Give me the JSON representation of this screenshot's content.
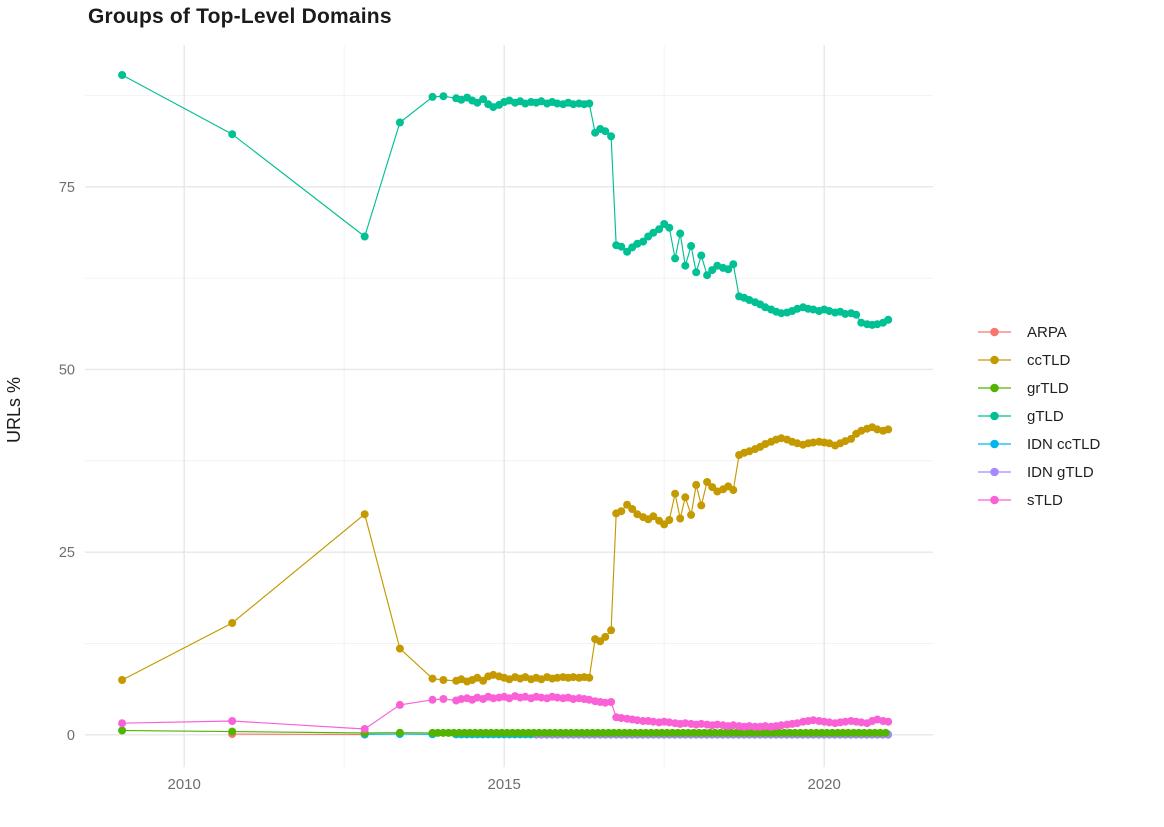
{
  "chart_data": {
    "type": "line",
    "title": "Groups of Top-Level Domains",
    "xlabel": "",
    "ylabel": "URLs %",
    "xlim": [
      2008.45,
      2021.7
    ],
    "ylim": [
      -4.4,
      94.4
    ],
    "x_ticks": [
      2010,
      2015,
      2020
    ],
    "x_minor_gridlines": [
      2012.5,
      2017.5
    ],
    "y_ticks": [
      0,
      25,
      50,
      75
    ],
    "y_minor_gridlines": [
      12.5,
      37.5,
      62.5,
      87.5
    ],
    "grid": true,
    "legend_position": "right-center",
    "point_radius": 4,
    "line_width": 1.15,
    "draw_order": [
      "ARPA",
      "IDN ccTLD",
      "IDN gTLD",
      "grTLD",
      "ccTLD",
      "gTLD",
      "sTLD"
    ],
    "series": [
      {
        "name": "ARPA",
        "color": "#F8766D",
        "points": [
          [
            2010.75,
            0.1
          ],
          [
            2012.82,
            0.03
          ]
        ]
      },
      {
        "name": "ccTLD",
        "color": "#C49A00",
        "points": [
          [
            2009.03,
            7.5
          ],
          [
            2010.75,
            15.3
          ],
          [
            2012.82,
            30.2
          ],
          [
            2013.37,
            11.8
          ],
          [
            2013.88,
            7.7
          ],
          [
            2014.05,
            7.5
          ],
          [
            2014.25,
            7.4
          ],
          [
            2014.33,
            7.6
          ],
          [
            2014.42,
            7.3
          ],
          [
            2014.5,
            7.5
          ],
          [
            2014.58,
            7.8
          ],
          [
            2014.67,
            7.4
          ],
          [
            2014.75,
            8.0
          ],
          [
            2014.83,
            8.2
          ],
          [
            2014.92,
            8.0
          ],
          [
            2015.0,
            7.8
          ],
          [
            2015.08,
            7.6
          ],
          [
            2015.17,
            7.9
          ],
          [
            2015.25,
            7.7
          ],
          [
            2015.33,
            7.9
          ],
          [
            2015.42,
            7.6
          ],
          [
            2015.5,
            7.8
          ],
          [
            2015.58,
            7.6
          ],
          [
            2015.67,
            7.9
          ],
          [
            2015.75,
            7.7
          ],
          [
            2015.83,
            7.8
          ],
          [
            2015.92,
            7.9
          ],
          [
            2016.0,
            7.8
          ],
          [
            2016.08,
            7.9
          ],
          [
            2016.17,
            7.8
          ],
          [
            2016.25,
            7.9
          ],
          [
            2016.33,
            7.8
          ],
          [
            2016.42,
            13.1
          ],
          [
            2016.5,
            12.8
          ],
          [
            2016.58,
            13.4
          ],
          [
            2016.67,
            14.3
          ],
          [
            2016.75,
            30.3
          ],
          [
            2016.83,
            30.6
          ],
          [
            2016.92,
            31.5
          ],
          [
            2017.0,
            30.9
          ],
          [
            2017.08,
            30.2
          ],
          [
            2017.17,
            29.8
          ],
          [
            2017.25,
            29.5
          ],
          [
            2017.33,
            29.9
          ],
          [
            2017.42,
            29.3
          ],
          [
            2017.5,
            28.8
          ],
          [
            2017.58,
            29.4
          ],
          [
            2017.67,
            33.0
          ],
          [
            2017.75,
            29.6
          ],
          [
            2017.83,
            32.5
          ],
          [
            2017.92,
            30.1
          ],
          [
            2018.0,
            34.2
          ],
          [
            2018.08,
            31.4
          ],
          [
            2018.17,
            34.6
          ],
          [
            2018.25,
            33.9
          ],
          [
            2018.33,
            33.3
          ],
          [
            2018.42,
            33.6
          ],
          [
            2018.5,
            34.0
          ],
          [
            2018.58,
            33.5
          ],
          [
            2018.67,
            38.3
          ],
          [
            2018.75,
            38.6
          ],
          [
            2018.83,
            38.8
          ],
          [
            2018.92,
            39.1
          ],
          [
            2019.0,
            39.4
          ],
          [
            2019.08,
            39.8
          ],
          [
            2019.17,
            40.1
          ],
          [
            2019.25,
            40.4
          ],
          [
            2019.33,
            40.6
          ],
          [
            2019.42,
            40.4
          ],
          [
            2019.5,
            40.1
          ],
          [
            2019.58,
            39.9
          ],
          [
            2019.67,
            39.7
          ],
          [
            2019.75,
            39.9
          ],
          [
            2019.83,
            40.0
          ],
          [
            2019.92,
            40.1
          ],
          [
            2020.0,
            40.0
          ],
          [
            2020.08,
            39.9
          ],
          [
            2020.17,
            39.6
          ],
          [
            2020.25,
            39.9
          ],
          [
            2020.33,
            40.2
          ],
          [
            2020.42,
            40.5
          ],
          [
            2020.5,
            41.2
          ],
          [
            2020.58,
            41.6
          ],
          [
            2020.67,
            41.9
          ],
          [
            2020.75,
            42.1
          ],
          [
            2020.83,
            41.8
          ],
          [
            2020.92,
            41.6
          ],
          [
            2021.0,
            41.8
          ]
        ]
      },
      {
        "name": "grTLD",
        "color": "#53B400",
        "points": [
          [
            2009.03,
            0.6
          ],
          [
            2010.75,
            0.45
          ],
          [
            2012.82,
            0.25
          ],
          [
            2013.37,
            0.3
          ]
        ],
        "span": {
          "from": 2013.88,
          "to": 2021.0,
          "step": 0.0833,
          "value": 0.27
        }
      },
      {
        "name": "gTLD",
        "color": "#00C094",
        "points": [
          [
            2009.03,
            90.3
          ],
          [
            2010.75,
            82.2
          ],
          [
            2012.82,
            68.2
          ],
          [
            2013.37,
            83.8
          ],
          [
            2013.88,
            87.3
          ],
          [
            2014.05,
            87.4
          ],
          [
            2014.25,
            87.1
          ],
          [
            2014.33,
            86.9
          ],
          [
            2014.42,
            87.2
          ],
          [
            2014.5,
            86.8
          ],
          [
            2014.58,
            86.5
          ],
          [
            2014.67,
            87.0
          ],
          [
            2014.75,
            86.3
          ],
          [
            2014.83,
            85.9
          ],
          [
            2014.92,
            86.2
          ],
          [
            2015.0,
            86.6
          ],
          [
            2015.08,
            86.8
          ],
          [
            2015.17,
            86.5
          ],
          [
            2015.25,
            86.7
          ],
          [
            2015.33,
            86.4
          ],
          [
            2015.42,
            86.6
          ],
          [
            2015.5,
            86.5
          ],
          [
            2015.58,
            86.7
          ],
          [
            2015.67,
            86.4
          ],
          [
            2015.75,
            86.6
          ],
          [
            2015.83,
            86.4
          ],
          [
            2015.92,
            86.3
          ],
          [
            2016.0,
            86.5
          ],
          [
            2016.08,
            86.3
          ],
          [
            2016.17,
            86.4
          ],
          [
            2016.25,
            86.3
          ],
          [
            2016.33,
            86.4
          ],
          [
            2016.42,
            82.4
          ],
          [
            2016.5,
            82.9
          ],
          [
            2016.58,
            82.6
          ],
          [
            2016.67,
            81.9
          ],
          [
            2016.75,
            67.0
          ],
          [
            2016.83,
            66.8
          ],
          [
            2016.92,
            66.1
          ],
          [
            2017.0,
            66.7
          ],
          [
            2017.08,
            67.2
          ],
          [
            2017.17,
            67.5
          ],
          [
            2017.25,
            68.2
          ],
          [
            2017.33,
            68.7
          ],
          [
            2017.42,
            69.2
          ],
          [
            2017.5,
            69.9
          ],
          [
            2017.58,
            69.4
          ],
          [
            2017.67,
            65.2
          ],
          [
            2017.75,
            68.6
          ],
          [
            2017.83,
            64.2
          ],
          [
            2017.92,
            66.9
          ],
          [
            2018.0,
            63.3
          ],
          [
            2018.08,
            65.6
          ],
          [
            2018.17,
            62.9
          ],
          [
            2018.25,
            63.6
          ],
          [
            2018.33,
            64.2
          ],
          [
            2018.42,
            63.9
          ],
          [
            2018.5,
            63.7
          ],
          [
            2018.58,
            64.4
          ],
          [
            2018.67,
            60.0
          ],
          [
            2018.75,
            59.8
          ],
          [
            2018.83,
            59.5
          ],
          [
            2018.92,
            59.2
          ],
          [
            2019.0,
            58.9
          ],
          [
            2019.08,
            58.5
          ],
          [
            2019.17,
            58.2
          ],
          [
            2019.25,
            57.9
          ],
          [
            2019.33,
            57.7
          ],
          [
            2019.42,
            57.8
          ],
          [
            2019.5,
            58.0
          ],
          [
            2019.58,
            58.3
          ],
          [
            2019.67,
            58.5
          ],
          [
            2019.75,
            58.3
          ],
          [
            2019.83,
            58.2
          ],
          [
            2019.92,
            58.0
          ],
          [
            2020.0,
            58.2
          ],
          [
            2020.08,
            58.0
          ],
          [
            2020.17,
            57.8
          ],
          [
            2020.25,
            57.9
          ],
          [
            2020.33,
            57.6
          ],
          [
            2020.42,
            57.7
          ],
          [
            2020.5,
            57.5
          ],
          [
            2020.58,
            56.4
          ],
          [
            2020.67,
            56.2
          ],
          [
            2020.75,
            56.1
          ],
          [
            2020.83,
            56.2
          ],
          [
            2020.92,
            56.4
          ],
          [
            2021.0,
            56.8
          ]
        ]
      },
      {
        "name": "IDN ccTLD",
        "color": "#00B6EB",
        "points": [
          [
            2012.82,
            0.08
          ],
          [
            2013.37,
            0.1
          ],
          [
            2013.88,
            0.07
          ]
        ],
        "span": {
          "from": 2014.25,
          "to": 2021.0,
          "step": 0.0833,
          "value": 0.06
        }
      },
      {
        "name": "IDN gTLD",
        "color": "#A58AFF",
        "points": [],
        "span": {
          "from": 2015.5,
          "to": 2021.0,
          "step": 0.0833,
          "value": 0.02
        }
      },
      {
        "name": "sTLD",
        "color": "#FB61D7",
        "points": [
          [
            2009.03,
            1.6
          ],
          [
            2010.75,
            1.9
          ],
          [
            2012.82,
            0.8
          ],
          [
            2013.37,
            4.1
          ],
          [
            2013.88,
            4.8
          ],
          [
            2014.05,
            4.9
          ],
          [
            2014.25,
            4.7
          ],
          [
            2014.33,
            4.9
          ],
          [
            2014.42,
            5.0
          ],
          [
            2014.5,
            4.8
          ],
          [
            2014.58,
            5.1
          ],
          [
            2014.67,
            4.9
          ],
          [
            2014.75,
            5.2
          ],
          [
            2014.83,
            5.0
          ],
          [
            2014.92,
            5.1
          ],
          [
            2015.0,
            5.2
          ],
          [
            2015.08,
            5.0
          ],
          [
            2015.17,
            5.3
          ],
          [
            2015.25,
            5.1
          ],
          [
            2015.33,
            5.2
          ],
          [
            2015.42,
            5.0
          ],
          [
            2015.5,
            5.2
          ],
          [
            2015.58,
            5.1
          ],
          [
            2015.67,
            5.0
          ],
          [
            2015.75,
            5.2
          ],
          [
            2015.83,
            5.1
          ],
          [
            2015.92,
            5.0
          ],
          [
            2016.0,
            5.1
          ],
          [
            2016.08,
            4.9
          ],
          [
            2016.17,
            5.0
          ],
          [
            2016.25,
            4.9
          ],
          [
            2016.33,
            4.8
          ],
          [
            2016.42,
            4.6
          ],
          [
            2016.5,
            4.5
          ],
          [
            2016.58,
            4.4
          ],
          [
            2016.67,
            4.5
          ],
          [
            2016.75,
            2.4
          ],
          [
            2016.83,
            2.3
          ],
          [
            2016.92,
            2.2
          ],
          [
            2017.0,
            2.1
          ],
          [
            2017.08,
            2.0
          ],
          [
            2017.17,
            1.9
          ],
          [
            2017.25,
            1.9
          ],
          [
            2017.33,
            1.8
          ],
          [
            2017.42,
            1.7
          ],
          [
            2017.5,
            1.8
          ],
          [
            2017.58,
            1.7
          ],
          [
            2017.67,
            1.6
          ],
          [
            2017.75,
            1.5
          ],
          [
            2017.83,
            1.6
          ],
          [
            2017.92,
            1.5
          ],
          [
            2018.0,
            1.4
          ],
          [
            2018.08,
            1.5
          ],
          [
            2018.17,
            1.4
          ],
          [
            2018.25,
            1.3
          ],
          [
            2018.33,
            1.4
          ],
          [
            2018.42,
            1.3
          ],
          [
            2018.5,
            1.2
          ],
          [
            2018.58,
            1.3
          ],
          [
            2018.67,
            1.2
          ],
          [
            2018.75,
            1.1
          ],
          [
            2018.83,
            1.2
          ],
          [
            2018.92,
            1.1
          ],
          [
            2019.0,
            1.1
          ],
          [
            2019.08,
            1.2
          ],
          [
            2019.17,
            1.1
          ],
          [
            2019.25,
            1.2
          ],
          [
            2019.33,
            1.3
          ],
          [
            2019.42,
            1.4
          ],
          [
            2019.5,
            1.5
          ],
          [
            2019.58,
            1.6
          ],
          [
            2019.67,
            1.8
          ],
          [
            2019.75,
            1.9
          ],
          [
            2019.83,
            2.0
          ],
          [
            2019.92,
            1.9
          ],
          [
            2020.0,
            1.8
          ],
          [
            2020.08,
            1.7
          ],
          [
            2020.17,
            1.6
          ],
          [
            2020.25,
            1.7
          ],
          [
            2020.33,
            1.8
          ],
          [
            2020.42,
            1.9
          ],
          [
            2020.5,
            1.8
          ],
          [
            2020.58,
            1.7
          ],
          [
            2020.67,
            1.6
          ],
          [
            2020.75,
            1.9
          ],
          [
            2020.83,
            2.1
          ],
          [
            2020.92,
            1.9
          ],
          [
            2021.0,
            1.8
          ]
        ]
      }
    ]
  }
}
